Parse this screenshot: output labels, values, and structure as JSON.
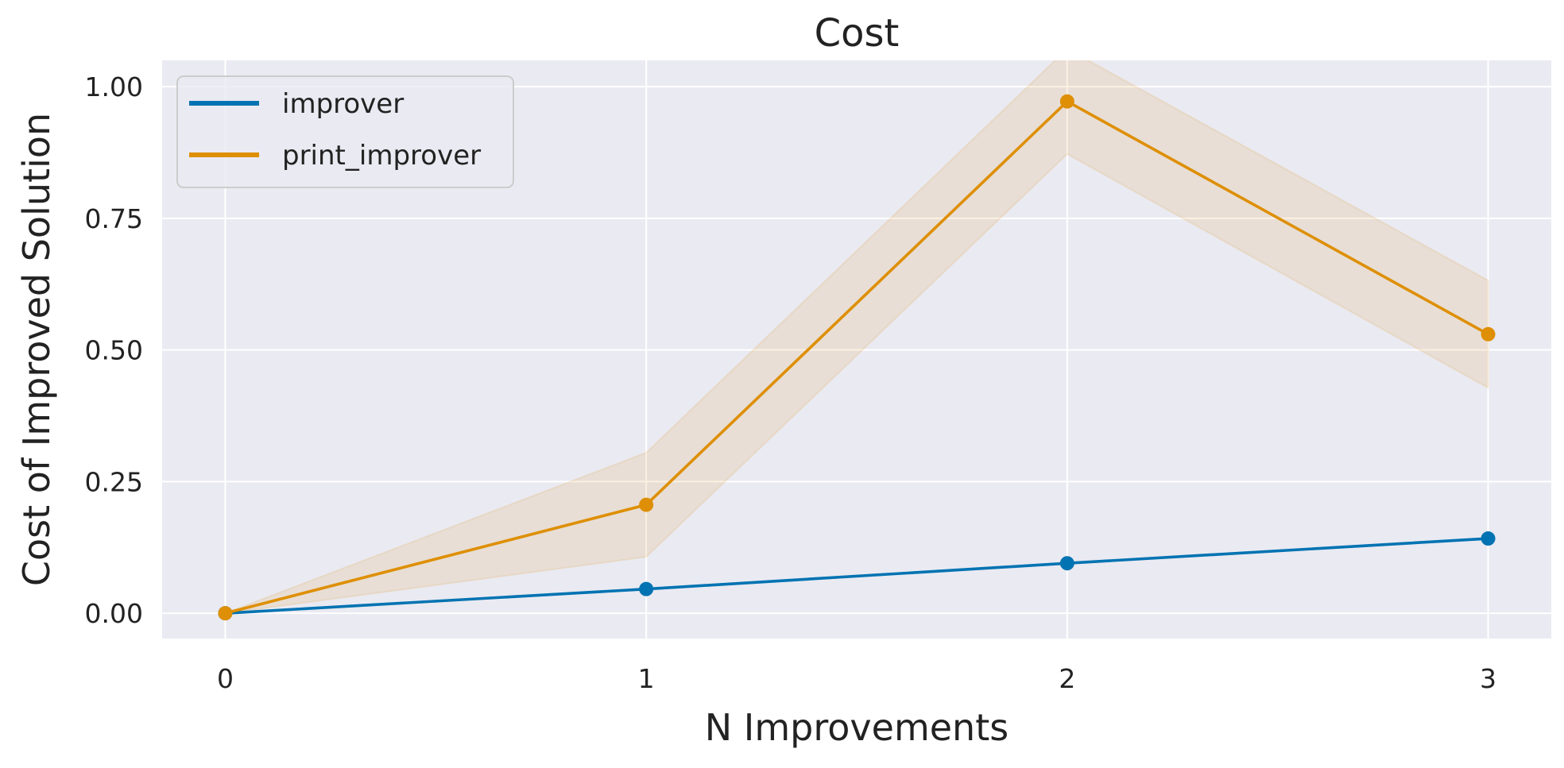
{
  "chart_data": {
    "type": "line",
    "title": "Cost",
    "xlabel": "N Improvements",
    "ylabel": "Cost of Improved Solution",
    "x": [
      0,
      1,
      2,
      3
    ],
    "xlim": [
      -0.15,
      3.15
    ],
    "ylim": [
      -0.048,
      1.05
    ],
    "xticks": [
      0,
      1,
      2,
      3
    ],
    "xtick_labels": [
      "0",
      "1",
      "2",
      "3"
    ],
    "yticks": [
      0.0,
      0.25,
      0.5,
      0.75,
      1.0
    ],
    "ytick_labels": [
      "0.00",
      "0.25",
      "0.50",
      "0.75",
      "1.00"
    ],
    "grid": true,
    "legend_position": "top-left",
    "background_color": "#eaeaf2",
    "grid_color": "#ffffff",
    "series": [
      {
        "name": "improver",
        "color": "#0173b2",
        "values": [
          0.0,
          0.046,
          0.095,
          0.142
        ],
        "lower": [
          0.0,
          0.046,
          0.095,
          0.142
        ],
        "upper": [
          0.0,
          0.046,
          0.095,
          0.142
        ]
      },
      {
        "name": "print_improver",
        "color": "#de8f05",
        "values": [
          0.0,
          0.206,
          0.972,
          0.53
        ],
        "lower": [
          0.0,
          0.107,
          0.872,
          0.428
        ],
        "upper": [
          0.0,
          0.305,
          1.072,
          0.632
        ]
      }
    ]
  }
}
